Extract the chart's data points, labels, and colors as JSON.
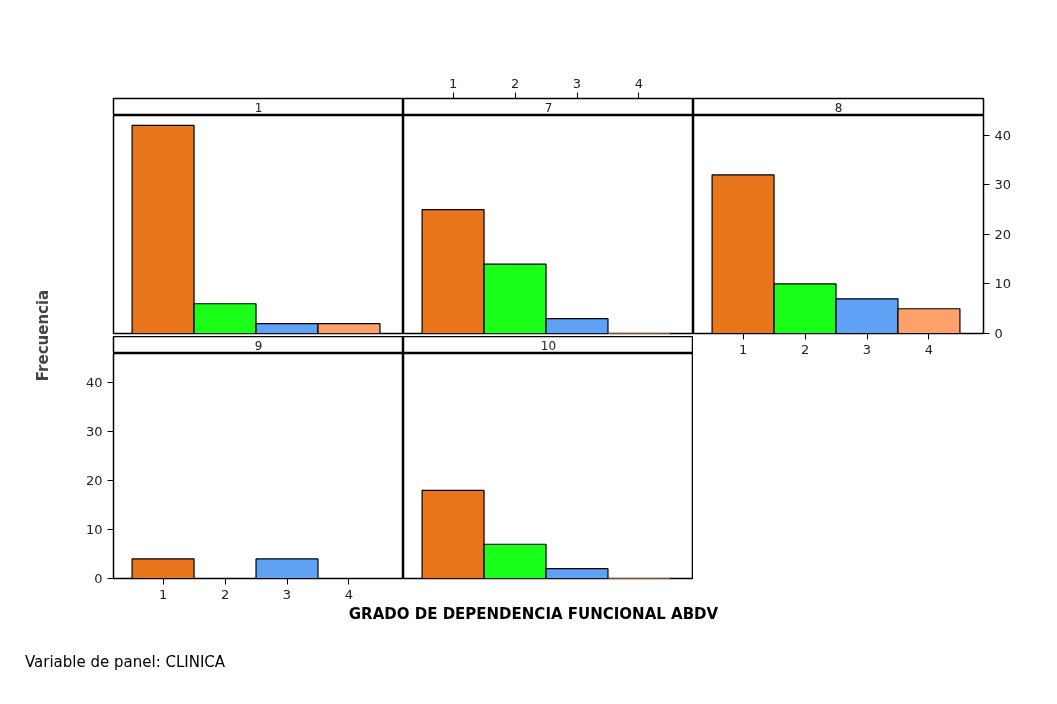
{
  "chart_data": [
    {
      "type": "bar",
      "title": "1",
      "categories": [
        "1",
        "2",
        "3",
        "4"
      ],
      "values": [
        42,
        6,
        2,
        2
      ],
      "colors": [
        "#e8751a",
        "#19ff19",
        "#5ea1f5",
        "#ffa16b"
      ],
      "ylim": [
        0,
        44
      ],
      "tick_labels": false,
      "xlabel": "GRADO DE DEPENDENCIA FUNCIONAL ABDV",
      "ylabel": "Frecuencia",
      "annotations": [
        "Variable de panel: CLINICA"
      ]
    },
    {
      "type": "bar",
      "title": "7",
      "categories": [
        "1",
        "2",
        "3",
        "4"
      ],
      "values": [
        25,
        14,
        3,
        0
      ],
      "colors": [
        "#e8751a",
        "#19ff19",
        "#5ea1f5",
        "#ffa16b"
      ],
      "ylim": [
        0,
        44
      ],
      "tick_labels": "x"
    },
    {
      "type": "bar",
      "title": "8",
      "categories": [
        "1",
        "2",
        "3",
        "4"
      ],
      "values": [
        32,
        10,
        7,
        5
      ],
      "colors": [
        "#e8751a",
        "#19ff19",
        "#5ea1f5",
        "#ffa16b"
      ],
      "ylim": [
        0,
        44
      ],
      "yticks": [
        0,
        10,
        20,
        30,
        40
      ]
    },
    {
      "type": "bar",
      "title": "9",
      "categories": [
        "1",
        "2",
        "3",
        "4"
      ],
      "values": [
        4,
        0,
        4,
        0
      ],
      "colors": [
        "#e8751a",
        "#19ff19",
        "#5ea1f5",
        "#ffa16b"
      ],
      "ylim": [
        0,
        46
      ],
      "yticks": [
        0,
        10,
        20,
        30,
        40
      ]
    },
    {
      "type": "bar",
      "title": "10",
      "categories": [
        "1",
        "2",
        "3",
        "4"
      ],
      "values": [
        18,
        7,
        2,
        0
      ],
      "colors": [
        "#e8751a",
        "#19ff19",
        "#5ea1f5",
        "#ffa16b"
      ],
      "ylim": [
        0,
        46
      ],
      "tick_labels": false
    }
  ]
}
